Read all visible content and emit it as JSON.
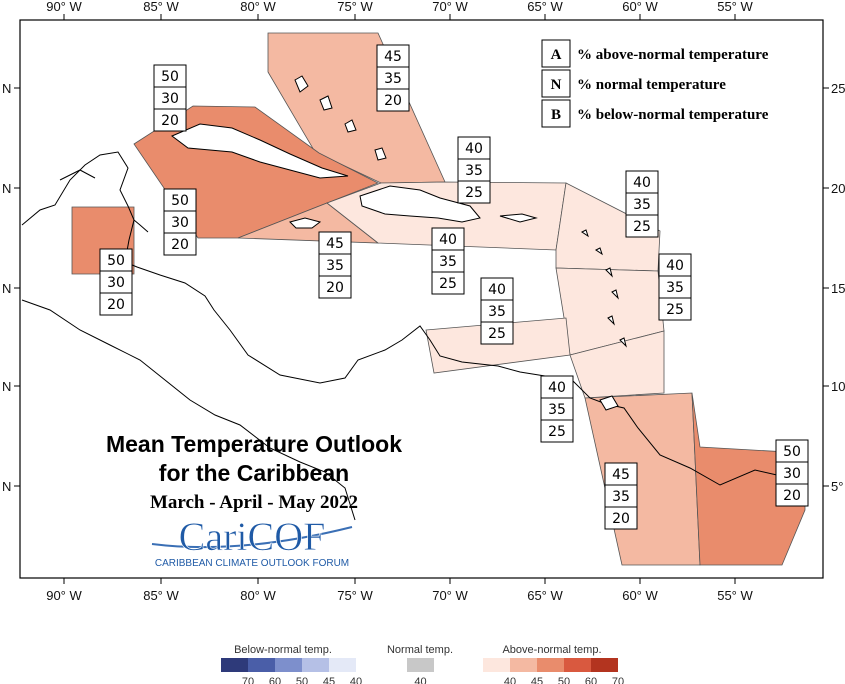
{
  "map": {
    "top_lon_labels": [
      "90° W",
      "85° W",
      "80° W",
      "75° W",
      "70° W",
      "65° W",
      "60° W",
      "55° W"
    ],
    "bottom_lon_labels": [
      "90° W",
      "85° W",
      "80° W",
      "75° W",
      "70° W",
      "65° W",
      "60° W",
      "55° W"
    ],
    "left_lat_labels": [
      "N",
      "N",
      "N",
      "N",
      "N"
    ],
    "right_lat_labels": [
      "25",
      "20",
      "15",
      "10",
      "5°"
    ]
  },
  "legend": {
    "rows": [
      {
        "key": "A",
        "text": "% above-normal temperature"
      },
      {
        "key": "N",
        "text": "% normal temperature"
      },
      {
        "key": "B",
        "text": "% below-normal temperature"
      }
    ]
  },
  "title": {
    "line1": "Mean Temperature Outlook",
    "line2": "for the Caribbean",
    "period": "March - April - May 2022"
  },
  "logo": {
    "name": "CariCOF",
    "tagline": "CARIBBEAN CLIMATE OUTLOOK FORUM"
  },
  "forecast_boxes": [
    {
      "id": "bahamas",
      "A": "45",
      "N": "35",
      "B": "20"
    },
    {
      "id": "cuba",
      "A": "50",
      "N": "30",
      "B": "20"
    },
    {
      "id": "cayman",
      "A": "50",
      "N": "30",
      "B": "20"
    },
    {
      "id": "belize",
      "A": "50",
      "N": "30",
      "B": "20"
    },
    {
      "id": "jamaica",
      "A": "45",
      "N": "35",
      "B": "20"
    },
    {
      "id": "hispaniola-north",
      "A": "40",
      "N": "35",
      "B": "25"
    },
    {
      "id": "hispaniola-south",
      "A": "40",
      "N": "35",
      "B": "25"
    },
    {
      "id": "leewards",
      "A": "40",
      "N": "35",
      "B": "25"
    },
    {
      "id": "windwards",
      "A": "40",
      "N": "35",
      "B": "25"
    },
    {
      "id": "abc-islands",
      "A": "40",
      "N": "35",
      "B": "25"
    },
    {
      "id": "trinidad",
      "A": "40",
      "N": "35",
      "B": "25"
    },
    {
      "id": "guyana",
      "A": "45",
      "N": "35",
      "B": "20"
    },
    {
      "id": "suriname",
      "A": "50",
      "N": "30",
      "B": "20"
    }
  ],
  "colorbar": {
    "below": {
      "title": "Below-normal temp.",
      "ticks": [
        "70",
        "60",
        "50",
        "45",
        "40"
      ],
      "colors": [
        "#2e3a7a",
        "#4a5ea8",
        "#7d8fcc",
        "#b5c0e6",
        "#e4e9f7"
      ]
    },
    "normal": {
      "title": "Normal temp.",
      "ticks": [
        "40"
      ],
      "colors": [
        "#c8c8c8"
      ]
    },
    "above": {
      "title": "Above-normal temp.",
      "ticks": [
        "40",
        "45",
        "50",
        "60",
        "70"
      ],
      "colors": [
        "#fde7de",
        "#f4b9a2",
        "#e98c6c",
        "#d9593f",
        "#b3341f"
      ]
    }
  }
}
